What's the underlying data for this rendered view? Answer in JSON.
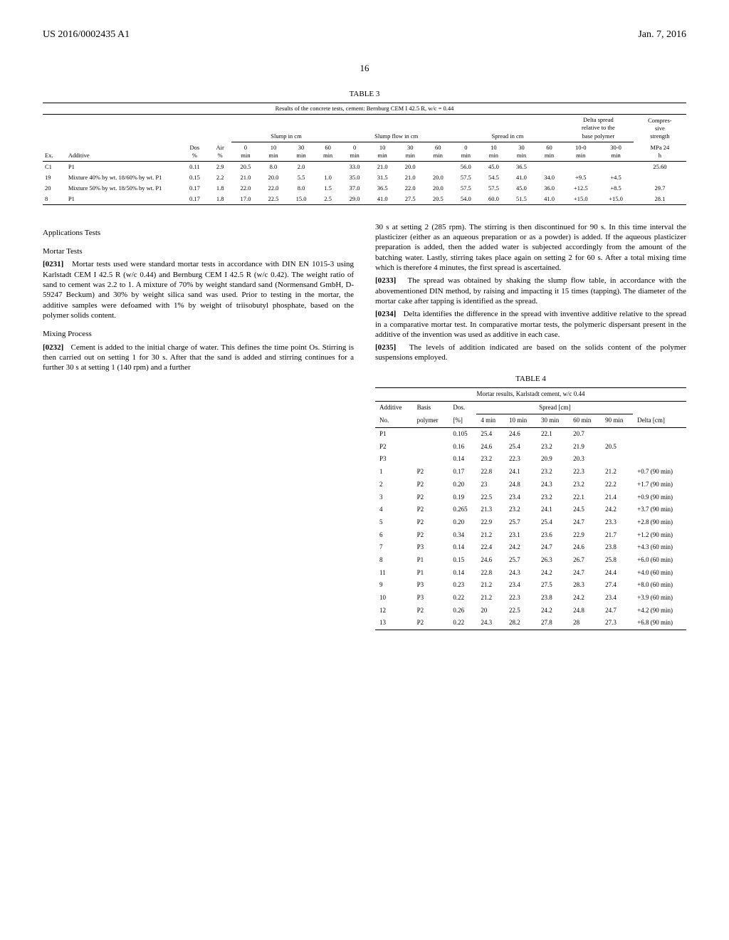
{
  "header": {
    "left": "US 2016/0002435 A1",
    "right": "Jan. 7, 2016"
  },
  "page_number": "16",
  "table3": {
    "caption": "TABLE 3",
    "subtitle": "Results of the concrete tests, cement: Bernburg CEM I 42.5 R, w/c = 0.44",
    "group_headers": [
      "Slump in cm",
      "Slump flow in cm",
      "Spread in cm",
      "Delta spread relative to the base polymer",
      "Compres-sive strength"
    ],
    "col_headers": [
      "Ex.",
      "Additive",
      "Dos %",
      "Air %",
      "0 min",
      "10 min",
      "30 min",
      "60 min",
      "0 min",
      "10 min",
      "30 min",
      "60 min",
      "0 min",
      "10 min",
      "30 min",
      "60 min",
      "10-0 min",
      "30-0 min",
      "MPa 24 h"
    ],
    "rows": [
      [
        "C1",
        "P1",
        "0.11",
        "2.9",
        "20.5",
        "8.0",
        "2.0",
        "",
        "33.0",
        "21.0",
        "20.0",
        "",
        "56.0",
        "45.0",
        "36.5",
        "",
        "",
        "",
        "25.60"
      ],
      [
        "19",
        "Mixture 40% by wt. 18/60% by wt. P1",
        "0.15",
        "2.2",
        "21.0",
        "20.0",
        "5.5",
        "1.0",
        "35.0",
        "31.5",
        "21.0",
        "20.0",
        "57.5",
        "54.5",
        "41.0",
        "34.0",
        "+9.5",
        "+4.5",
        ""
      ],
      [
        "20",
        "Mixture 50% by wt. 18/50% by wt. P1",
        "0.17",
        "1.8",
        "22.0",
        "22.0",
        "8.0",
        "1.5",
        "37.0",
        "36.5",
        "22.0",
        "20.0",
        "57.5",
        "57.5",
        "45.0",
        "36.0",
        "+12.5",
        "+8.5",
        "29.7"
      ],
      [
        "8",
        "P1",
        "0.17",
        "1.8",
        "17.0",
        "22.5",
        "15.0",
        "2.5",
        "29.0",
        "41.0",
        "27.5",
        "20.5",
        "54.0",
        "60.0",
        "51.5",
        "41.0",
        "+15.0",
        "+15.0",
        "28.1"
      ]
    ]
  },
  "body_text": {
    "app_tests": "Applications Tests",
    "mortar_tests": "Mortar Tests",
    "p0231_num": "[0231]",
    "p0231": "Mortar tests used were standard mortar tests in accordance with DIN EN 1015-3 using Karlstadt CEM I 42.5 R (w/c 0.44) and Bernburg CEM I 42.5 R (w/c 0.42). The weight ratio of sand to cement was 2.2 to 1. A mixture of 70% by weight standard sand (Normensand GmbH, D-59247 Beckum) and 30% by weight silica sand was used. Prior to testing in the mortar, the additive samples were defoamed with 1% by weight of triisobutyl phosphate, based on the polymer solids content.",
    "mixing_process": "Mixing Process",
    "p0232_num": "[0232]",
    "p0232": "Cement is added to the initial charge of water. This defines the time point Os. Stirring is then carried out on setting 1 for 30 s. After that the sand is added and stirring continues for a further 30 s at setting 1 (140 rpm) and a further",
    "p_cont": "30 s at setting 2 (285 rpm). The stirring is then discontinued for 90 s. In this time interval the plasticizer (either as an aqueous preparation or as a powder) is added. If the aqueous plasticizer preparation is added, then the added water is subjected accordingly from the amount of the batching water. Lastly, stirring takes place again on setting 2 for 60 s. After a total mixing time which is therefore 4 minutes, the first spread is ascertained.",
    "p0233_num": "[0233]",
    "p0233": "The spread was obtained by shaking the slump flow table, in accordance with the abovementioned DIN method, by raising and impacting it 15 times (tapping). The diameter of the mortar cake after tapping is identified as the spread.",
    "p0234_num": "[0234]",
    "p0234": "Delta identifies the difference in the spread with inventive additive relative to the spread in a comparative mortar test. In comparative mortar tests, the polymeric dispersant present in the additive of the invention was used as additive in each case.",
    "p0235_num": "[0235]",
    "p0235": "The levels of addition indicated are based on the solids content of the polymer suspensions employed."
  },
  "table4": {
    "caption": "TABLE 4",
    "subtitle": "Mortar results, Karlstadt cement, w/c 0.44",
    "head1": [
      "Additive",
      "Basis",
      "Dos.",
      "Spread [cm]"
    ],
    "head2": [
      "No.",
      "polymer",
      "[%]",
      "4 min",
      "10 min",
      "30 min",
      "60 min",
      "90 min",
      "Delta [cm]"
    ],
    "rows": [
      [
        "P1",
        "",
        "0.105",
        "25.4",
        "24.6",
        "22.1",
        "20.7",
        "",
        ""
      ],
      [
        "P2",
        "",
        "0.16",
        "24.6",
        "25.4",
        "23.2",
        "21.9",
        "20.5",
        ""
      ],
      [
        "P3",
        "",
        "0.14",
        "23.2",
        "22.3",
        "20.9",
        "20.3",
        "",
        ""
      ],
      [
        "1",
        "P2",
        "0.17",
        "22.8",
        "24.1",
        "23.2",
        "22.3",
        "21.2",
        "+0.7 (90 min)"
      ],
      [
        "2",
        "P2",
        "0.20",
        "23",
        "24.8",
        "24.3",
        "23.2",
        "22.2",
        "+1.7 (90 min)"
      ],
      [
        "3",
        "P2",
        "0.19",
        "22.5",
        "23.4",
        "23.2",
        "22.1",
        "21.4",
        "+0.9 (90 min)"
      ],
      [
        "4",
        "P2",
        "0.265",
        "21.3",
        "23.2",
        "24.1",
        "24.5",
        "24.2",
        "+3.7 (90 min)"
      ],
      [
        "5",
        "P2",
        "0.20",
        "22.9",
        "25.7",
        "25.4",
        "24.7",
        "23.3",
        "+2.8 (90 min)"
      ],
      [
        "6",
        "P2",
        "0.34",
        "21.2",
        "23.1",
        "23.6",
        "22.9",
        "21.7",
        "+1.2 (90 min)"
      ],
      [
        "7",
        "P3",
        "0.14",
        "22.4",
        "24.2",
        "24.7",
        "24.6",
        "23.8",
        "+4.3 (60 min)"
      ],
      [
        "8",
        "P1",
        "0.15",
        "24.6",
        "25.7",
        "26.3",
        "26.7",
        "25.8",
        "+6.0 (60 min)"
      ],
      [
        "11",
        "P1",
        "0.14",
        "22.8",
        "24.3",
        "24.2",
        "24.7",
        "24.4",
        "+4.0 (60 min)"
      ],
      [
        "9",
        "P3",
        "0.23",
        "21.2",
        "23.4",
        "27.5",
        "28.3",
        "27.4",
        "+8.0 (60 min)"
      ],
      [
        "10",
        "P3",
        "0.22",
        "21.2",
        "22.3",
        "23.8",
        "24.2",
        "23.4",
        "+3.9 (60 min)"
      ],
      [
        "12",
        "P2",
        "0.26",
        "20",
        "22.5",
        "24.2",
        "24.8",
        "24.7",
        "+4.2 (90 min)"
      ],
      [
        "13",
        "P2",
        "0.22",
        "24.3",
        "28.2",
        "27.8",
        "28",
        "27.3",
        "+6.8 (90 min)"
      ]
    ]
  }
}
